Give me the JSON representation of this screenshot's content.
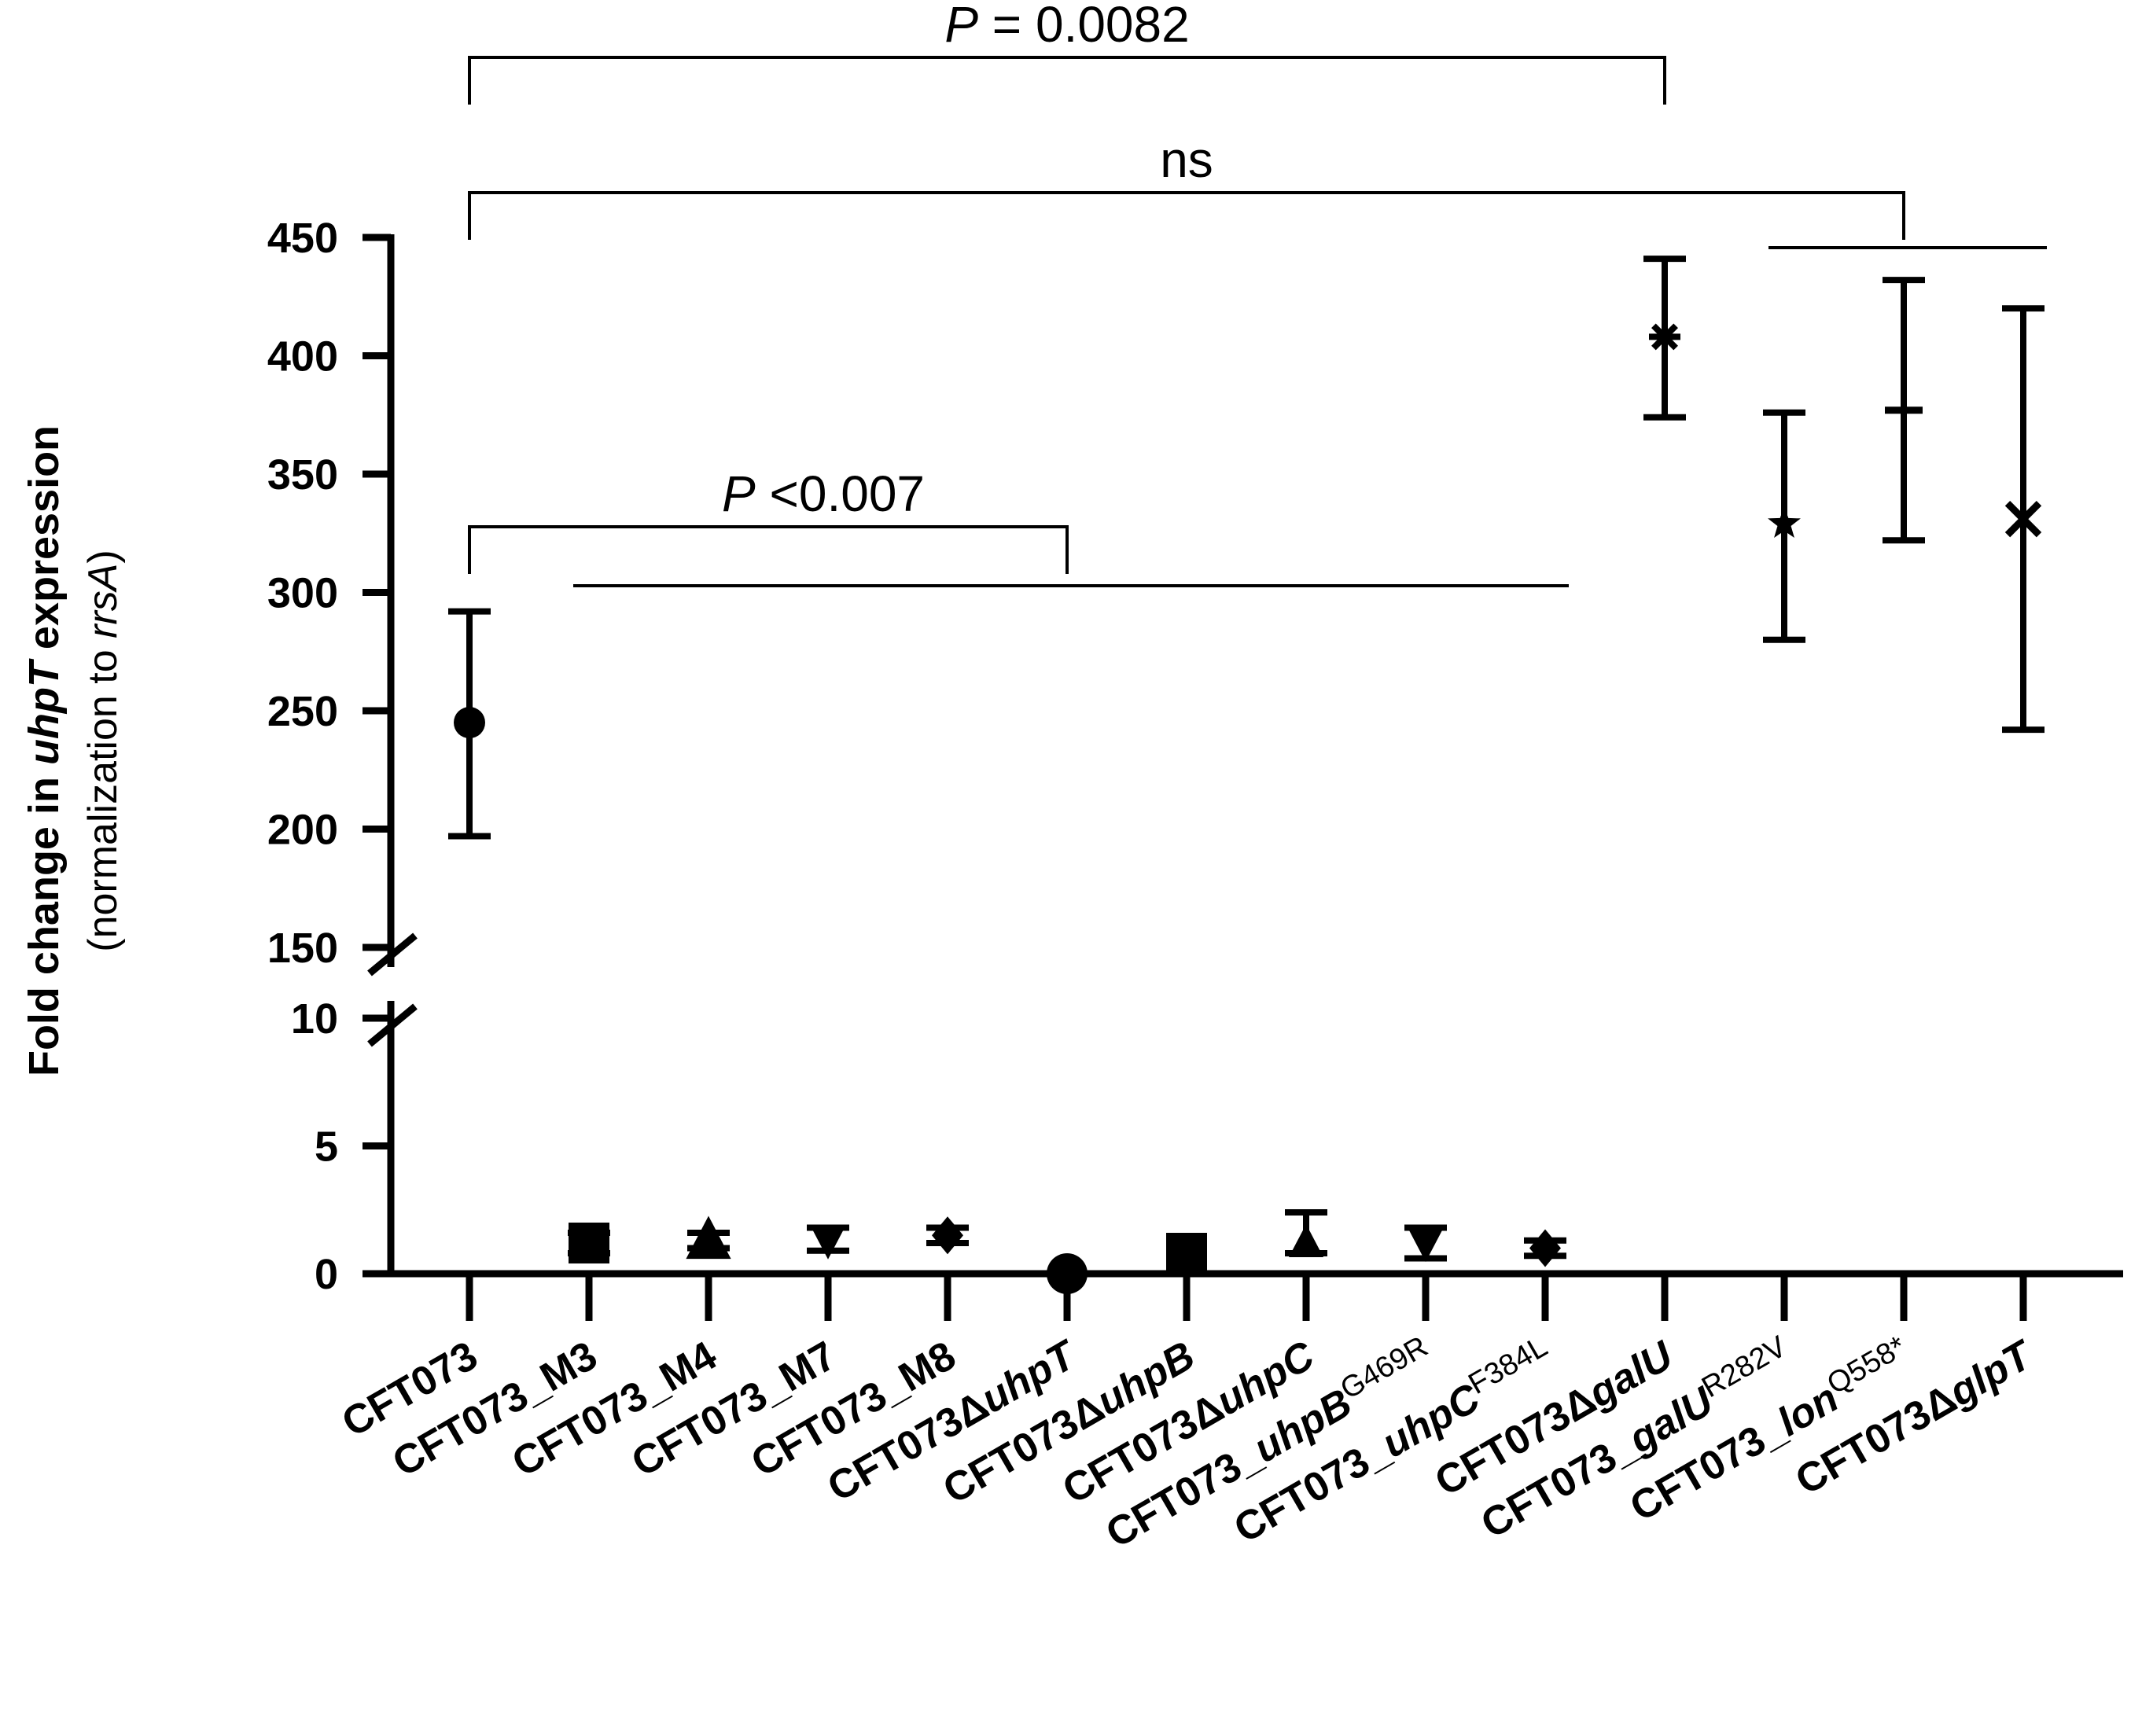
{
  "chart_data": {
    "type": "scatter",
    "ylabel": {
      "line1": [
        "Fold change in ",
        "uhpT",
        " expression"
      ],
      "line2": [
        "(normalization to ",
        "rrsA",
        ")"
      ]
    },
    "y_axis": {
      "broken": true,
      "lower_segment": {
        "range": [
          0,
          10
        ],
        "ticks": [
          "0",
          "5",
          "10"
        ]
      },
      "upper_segment": {
        "range": [
          150,
          450
        ],
        "ticks": [
          "150",
          "200",
          "250",
          "300",
          "350",
          "400",
          "450"
        ]
      }
    },
    "categories": [
      {
        "parts": [
          [
            "CFT073",
            ""
          ]
        ]
      },
      {
        "parts": [
          [
            "CFT073_M3",
            ""
          ]
        ]
      },
      {
        "parts": [
          [
            "CFT073_M4",
            ""
          ]
        ]
      },
      {
        "parts": [
          [
            "CFT073_M7",
            ""
          ]
        ]
      },
      {
        "parts": [
          [
            "CFT073_M8",
            ""
          ]
        ]
      },
      {
        "parts": [
          [
            "CFT073Δ",
            ""
          ],
          [
            "uhpT",
            "i"
          ]
        ]
      },
      {
        "parts": [
          [
            "CFT073Δ",
            ""
          ],
          [
            "uhpB",
            "i"
          ]
        ]
      },
      {
        "parts": [
          [
            "CFT073Δ",
            ""
          ],
          [
            "uhpC",
            "i"
          ]
        ]
      },
      {
        "parts": [
          [
            "CFT073_",
            ""
          ],
          [
            "uhpB",
            "i"
          ],
          [
            "G469R",
            "sup"
          ]
        ]
      },
      {
        "parts": [
          [
            "CFT073_",
            ""
          ],
          [
            "uhpC",
            "i"
          ],
          [
            "F384L",
            "sup"
          ]
        ]
      },
      {
        "parts": [
          [
            "CFT073Δ",
            ""
          ],
          [
            "galU",
            "i"
          ]
        ]
      },
      {
        "parts": [
          [
            "CFT073_",
            ""
          ],
          [
            "galU",
            "i"
          ],
          [
            "R282V",
            "sup"
          ]
        ]
      },
      {
        "parts": [
          [
            "CFT073_",
            ""
          ],
          [
            "lon",
            "i"
          ],
          [
            "Q558*",
            "sup"
          ]
        ]
      },
      {
        "parts": [
          [
            "CFT073Δ",
            ""
          ],
          [
            "glpT",
            "i"
          ]
        ]
      }
    ],
    "points": [
      {
        "mean": 245,
        "low": 197,
        "high": 292,
        "marker": "circle"
      },
      {
        "mean": 1.2,
        "low": 0.8,
        "high": 1.6,
        "marker": "square"
      },
      {
        "mean": 1.3,
        "low": 1.0,
        "high": 1.6,
        "marker": "triangle"
      },
      {
        "mean": 1.3,
        "low": 0.9,
        "high": 1.8,
        "marker": "triangle-down"
      },
      {
        "mean": 1.5,
        "low": 1.2,
        "high": 1.8,
        "marker": "diamond"
      },
      {
        "mean": 0.0,
        "low": 0.0,
        "high": 0.0,
        "marker": "circle"
      },
      {
        "mean": 0.8,
        "low": 0.8,
        "high": 0.8,
        "marker": "square"
      },
      {
        "mean": 1.2,
        "low": 0.8,
        "high": 2.4,
        "marker": "triangle"
      },
      {
        "mean": 1.2,
        "low": 0.6,
        "high": 1.8,
        "marker": "triangle-down"
      },
      {
        "mean": 1.0,
        "low": 0.7,
        "high": 1.3,
        "marker": "diamond"
      },
      {
        "mean": 408,
        "low": 374,
        "high": 441,
        "marker": "asterisk"
      },
      {
        "mean": 329,
        "low": 280,
        "high": 376,
        "marker": "star"
      },
      {
        "mean": 377,
        "low": 322,
        "high": 432,
        "marker": "dash"
      },
      {
        "mean": 331,
        "low": 242,
        "high": 420,
        "marker": "x"
      }
    ],
    "annotations": [
      {
        "type": "bracket",
        "from": 0,
        "to": 10,
        "label": [
          "P",
          " = 0.0082"
        ]
      },
      {
        "type": "bracket",
        "from": 0,
        "to": 12,
        "label": [
          "",
          "ns"
        ]
      },
      {
        "type": "bracket",
        "from": 0,
        "to": 5,
        "label": [
          "P",
          " <0.007"
        ]
      }
    ],
    "group_lines": [
      {
        "from": 1,
        "to": 9
      },
      {
        "from": 11,
        "to": 13
      }
    ],
    "grid": false,
    "legend": "none"
  }
}
